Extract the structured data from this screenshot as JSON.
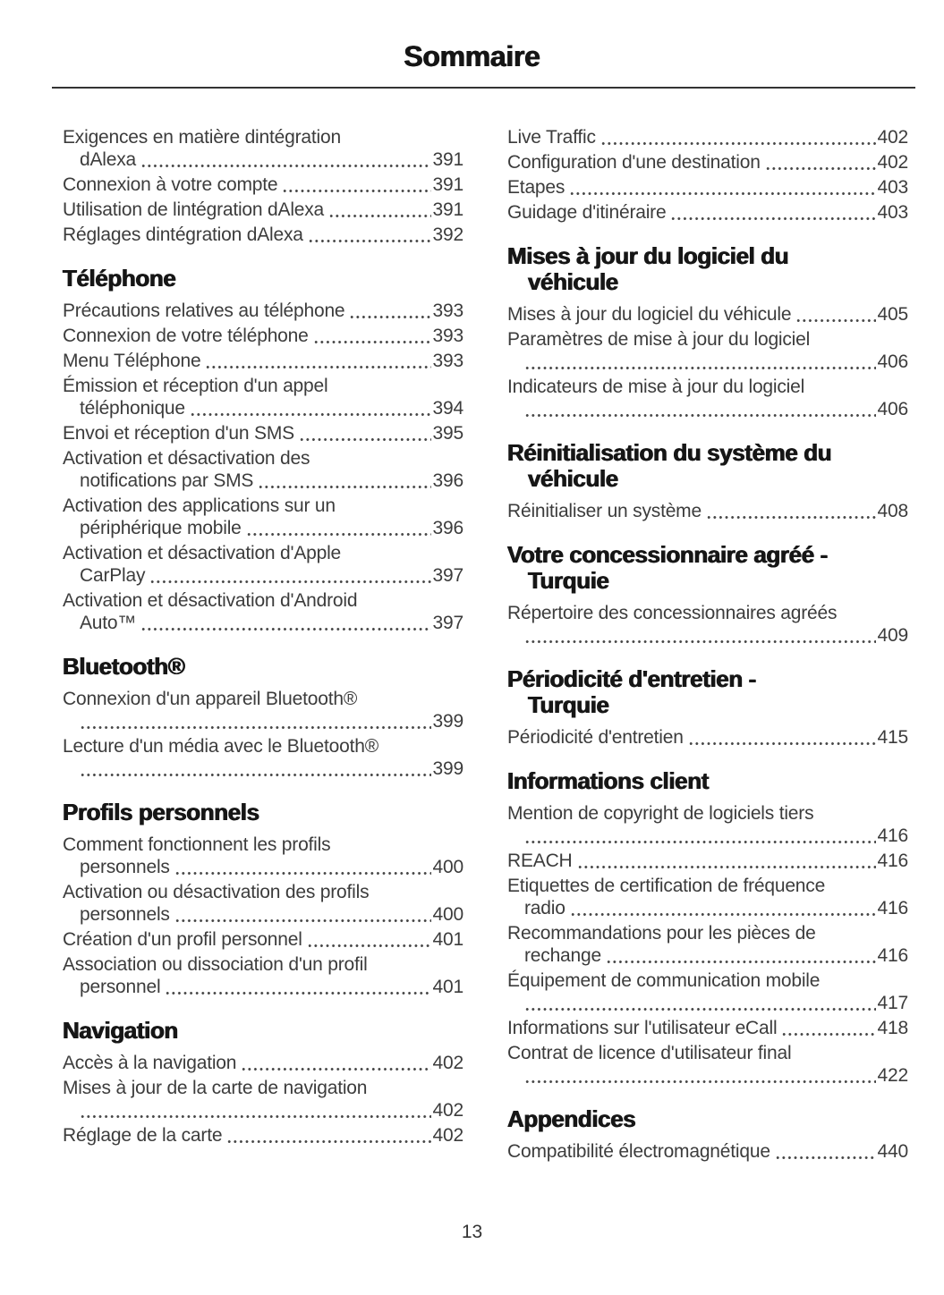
{
  "page": {
    "title": "Sommaire",
    "footer_page_number": "13"
  },
  "columns": {
    "left": {
      "sections": [
        {
          "heading_lines": [],
          "entries": [
            {
              "lines": [
                "Exigences en matière dintégration"
              ],
              "tail": "dAlexa",
              "page": "391"
            },
            {
              "lines": [],
              "tail": "Connexion à votre compte",
              "page": "391"
            },
            {
              "lines": [],
              "tail": "Utilisation de lintégration dAlexa",
              "page": "391"
            },
            {
              "lines": [],
              "tail": "Réglages dintégration dAlexa",
              "page": "392"
            }
          ]
        },
        {
          "heading_lines": [
            "Téléphone"
          ],
          "entries": [
            {
              "lines": [],
              "tail": "Précautions relatives au téléphone",
              "page": "393"
            },
            {
              "lines": [],
              "tail": "Connexion de votre téléphone",
              "page": "393"
            },
            {
              "lines": [],
              "tail": "Menu Téléphone",
              "page": "393"
            },
            {
              "lines": [
                "Émission et réception d'un appel"
              ],
              "tail": "téléphonique",
              "page": "394"
            },
            {
              "lines": [],
              "tail": "Envoi et réception d'un SMS",
              "page": "395"
            },
            {
              "lines": [
                "Activation et désactivation des"
              ],
              "tail": "notifications par SMS",
              "page": "396"
            },
            {
              "lines": [
                "Activation des applications sur un"
              ],
              "tail": "périphérique mobile",
              "page": "396"
            },
            {
              "lines": [
                "Activation et désactivation d'Apple"
              ],
              "tail": "CarPlay",
              "page": "397"
            },
            {
              "lines": [
                "Activation et désactivation d'Android"
              ],
              "tail": "Auto™",
              "page": "397"
            }
          ]
        },
        {
          "heading_lines": [
            "Bluetooth®"
          ],
          "entries": [
            {
              "lines": [
                "Connexion d'un appareil Bluetooth®"
              ],
              "tail": "",
              "page": "399"
            },
            {
              "lines": [
                "Lecture d'un média avec le Bluetooth®"
              ],
              "tail": "",
              "page": "399"
            }
          ]
        },
        {
          "heading_lines": [
            "Profils personnels"
          ],
          "entries": [
            {
              "lines": [
                "Comment fonctionnent les profils"
              ],
              "tail": "personnels",
              "page": "400"
            },
            {
              "lines": [
                "Activation ou désactivation des profils"
              ],
              "tail": "personnels",
              "page": "400"
            },
            {
              "lines": [],
              "tail": "Création d'un profil personnel",
              "page": "401"
            },
            {
              "lines": [
                "Association ou dissociation d'un profil"
              ],
              "tail": "personnel",
              "page": "401"
            }
          ]
        },
        {
          "heading_lines": [
            "Navigation"
          ],
          "entries": [
            {
              "lines": [],
              "tail": "Accès à la navigation",
              "page": "402"
            },
            {
              "lines": [
                "Mises à jour de la carte de navigation"
              ],
              "tail": "",
              "page": "402"
            },
            {
              "lines": [],
              "tail": "Réglage de la carte",
              "page": "402"
            }
          ]
        }
      ]
    },
    "right": {
      "sections": [
        {
          "heading_lines": [],
          "entries": [
            {
              "lines": [],
              "tail": "Live Traffic",
              "page": "402"
            },
            {
              "lines": [],
              "tail": "Configuration d'une destination",
              "page": "402"
            },
            {
              "lines": [],
              "tail": "Etapes",
              "page": "403"
            },
            {
              "lines": [],
              "tail": "Guidage d'itinéraire",
              "page": "403"
            }
          ]
        },
        {
          "heading_lines": [
            "Mises à jour du logiciel du",
            "véhicule"
          ],
          "entries": [
            {
              "lines": [],
              "tail": "Mises à jour du logiciel du véhicule",
              "page": "405"
            },
            {
              "lines": [
                "Paramètres de mise à jour du logiciel"
              ],
              "tail": "",
              "page": "406"
            },
            {
              "lines": [
                "Indicateurs de mise à jour du logiciel"
              ],
              "tail": "",
              "page": "406"
            }
          ]
        },
        {
          "heading_lines": [
            "Réinitialisation du système du",
            "véhicule"
          ],
          "entries": [
            {
              "lines": [],
              "tail": "Réinitialiser un système",
              "page": "408"
            }
          ]
        },
        {
          "heading_lines": [
            "Votre concessionnaire agréé -",
            "Turquie"
          ],
          "entries": [
            {
              "lines": [
                "Répertoire des concessionnaires agréés"
              ],
              "tail": "",
              "page": "409"
            }
          ]
        },
        {
          "heading_lines": [
            "Périodicité d'entretien -",
            "Turquie"
          ],
          "entries": [
            {
              "lines": [],
              "tail": "Périodicité d'entretien",
              "page": "415"
            }
          ]
        },
        {
          "heading_lines": [
            "Informations client"
          ],
          "entries": [
            {
              "lines": [
                "Mention de copyright de logiciels tiers"
              ],
              "tail": "",
              "page": "416"
            },
            {
              "lines": [],
              "tail": "REACH",
              "page": "416"
            },
            {
              "lines": [
                "Etiquettes de certification de fréquence"
              ],
              "tail": "radio",
              "page": "416"
            },
            {
              "lines": [
                "Recommandations pour les pièces de"
              ],
              "tail": "rechange",
              "page": "416"
            },
            {
              "lines": [
                "Équipement de communication mobile"
              ],
              "tail": "",
              "page": "417"
            },
            {
              "lines": [],
              "tail": "Informations sur l'utilisateur eCall",
              "page": "418"
            },
            {
              "lines": [
                "Contrat de licence d'utilisateur final"
              ],
              "tail": "",
              "page": "422"
            }
          ]
        },
        {
          "heading_lines": [
            "Appendices"
          ],
          "entries": [
            {
              "lines": [],
              "tail": "Compatibilité électromagnétique",
              "page": "440"
            }
          ]
        }
      ]
    }
  }
}
